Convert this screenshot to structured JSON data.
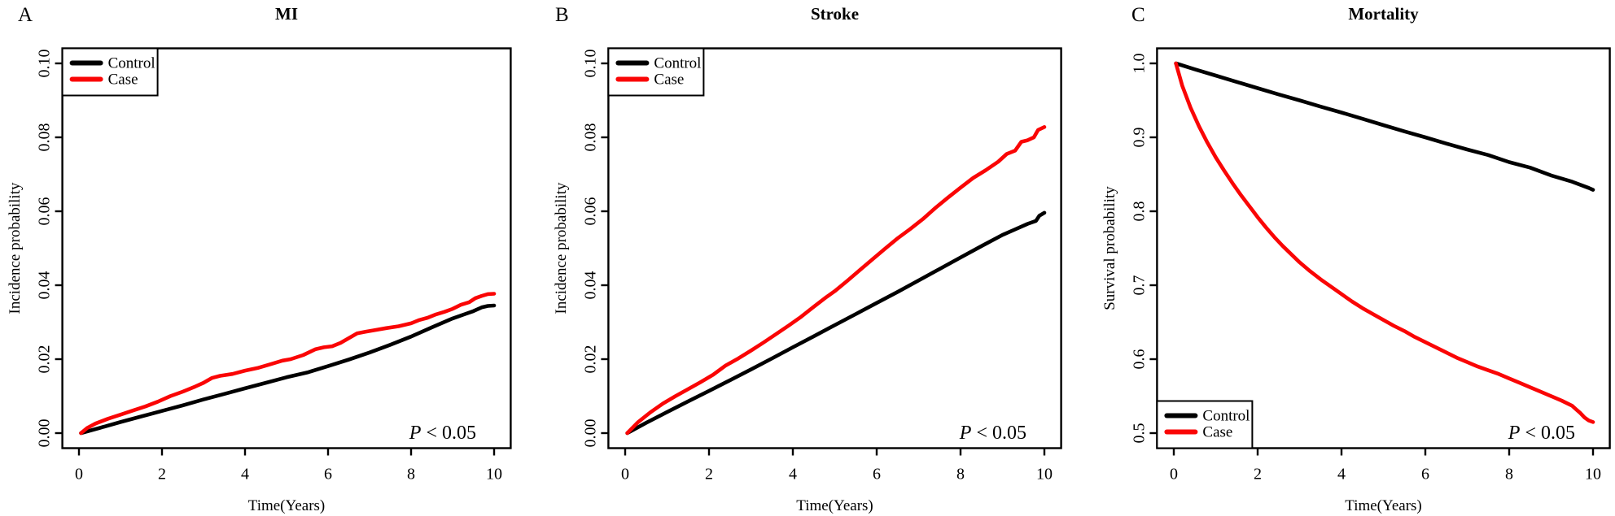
{
  "figure": {
    "background": "#ffffff",
    "curve_black": "#000000",
    "curve_red": "#fa0505",
    "p_annotation": "P < 0.05",
    "time_axis_label": "Time(Years)"
  },
  "chart_data": [
    {
      "type": "line",
      "panel_letter": "A",
      "title": "MI",
      "xlabel": "Time(Years)",
      "ylabel": "Incidence probability",
      "x_ticks": [
        "0",
        "2",
        "4",
        "6",
        "8",
        "10"
      ],
      "y_ticks": [
        "0.00",
        "0.02",
        "0.04",
        "0.06",
        "0.08",
        "0.10"
      ],
      "xlim": [
        0,
        10
      ],
      "ylim": [
        0,
        0.1
      ],
      "grid": false,
      "annotation": "P < 0.05",
      "legend": {
        "position": "top-left",
        "entries": [
          "Control",
          "Case"
        ]
      },
      "series": [
        {
          "name": "Control",
          "color": "#000000",
          "points": [
            [
              0.05,
              0
            ],
            [
              0.5,
              0.0014
            ],
            [
              1,
              0.003
            ],
            [
              1.5,
              0.0045
            ],
            [
              2,
              0.006
            ],
            [
              2.5,
              0.0075
            ],
            [
              3,
              0.0091
            ],
            [
              3.5,
              0.0106
            ],
            [
              4,
              0.0121
            ],
            [
              4.5,
              0.0136
            ],
            [
              5,
              0.0151
            ],
            [
              5.5,
              0.0164
            ],
            [
              6,
              0.0181
            ],
            [
              6.5,
              0.0199
            ],
            [
              7,
              0.0218
            ],
            [
              7.5,
              0.0239
            ],
            [
              8,
              0.0261
            ],
            [
              8.5,
              0.0286
            ],
            [
              9,
              0.031
            ],
            [
              9.3,
              0.0322
            ],
            [
              9.5,
              0.033
            ],
            [
              9.7,
              0.034
            ],
            [
              9.85,
              0.0344
            ],
            [
              10,
              0.0345
            ]
          ]
        },
        {
          "name": "Case",
          "color": "#fa0505",
          "points": [
            [
              0.05,
              0
            ],
            [
              0.2,
              0.0014
            ],
            [
              0.4,
              0.0026
            ],
            [
              0.7,
              0.0039
            ],
            [
              1,
              0.005
            ],
            [
              1.3,
              0.0061
            ],
            [
              1.6,
              0.0072
            ],
            [
              1.9,
              0.0085
            ],
            [
              2.2,
              0.01
            ],
            [
              2.5,
              0.0112
            ],
            [
              2.8,
              0.0126
            ],
            [
              3,
              0.0136
            ],
            [
              3.2,
              0.0149
            ],
            [
              3.4,
              0.0155
            ],
            [
              3.7,
              0.016
            ],
            [
              4,
              0.0169
            ],
            [
              4.3,
              0.0176
            ],
            [
              4.6,
              0.0186
            ],
            [
              4.9,
              0.0196
            ],
            [
              5.1,
              0.02
            ],
            [
              5.4,
              0.0211
            ],
            [
              5.7,
              0.0227
            ],
            [
              5.9,
              0.0232
            ],
            [
              6.1,
              0.0235
            ],
            [
              6.3,
              0.0244
            ],
            [
              6.5,
              0.0257
            ],
            [
              6.7,
              0.027
            ],
            [
              6.9,
              0.0274
            ],
            [
              7.1,
              0.0278
            ],
            [
              7.4,
              0.0284
            ],
            [
              7.7,
              0.0289
            ],
            [
              8,
              0.0297
            ],
            [
              8.2,
              0.0306
            ],
            [
              8.4,
              0.0312
            ],
            [
              8.6,
              0.0321
            ],
            [
              8.8,
              0.0328
            ],
            [
              9,
              0.0336
            ],
            [
              9.2,
              0.0347
            ],
            [
              9.4,
              0.0354
            ],
            [
              9.55,
              0.0365
            ],
            [
              9.7,
              0.0371
            ],
            [
              9.85,
              0.0376
            ],
            [
              10,
              0.0377
            ]
          ]
        }
      ]
    },
    {
      "type": "line",
      "panel_letter": "B",
      "title": "Stroke",
      "xlabel": "Time(Years)",
      "ylabel": "Incidence probability",
      "x_ticks": [
        "0",
        "2",
        "4",
        "6",
        "8",
        "10"
      ],
      "y_ticks": [
        "0.00",
        "0.02",
        "0.04",
        "0.06",
        "0.08",
        "0.10"
      ],
      "xlim": [
        0,
        10
      ],
      "ylim": [
        0,
        0.1
      ],
      "grid": false,
      "annotation": "P < 0.05",
      "legend": {
        "position": "top-left",
        "entries": [
          "Control",
          "Case"
        ]
      },
      "series": [
        {
          "name": "Control",
          "color": "#000000",
          "points": [
            [
              0.05,
              0
            ],
            [
              0.5,
              0.0028
            ],
            [
              1,
              0.0057
            ],
            [
              1.5,
              0.0086
            ],
            [
              2,
              0.0114
            ],
            [
              2.5,
              0.0143
            ],
            [
              3,
              0.0172
            ],
            [
              3.5,
              0.0202
            ],
            [
              4,
              0.0232
            ],
            [
              4.5,
              0.0262
            ],
            [
              5,
              0.0292
            ],
            [
              5.5,
              0.0322
            ],
            [
              6,
              0.0352
            ],
            [
              6.5,
              0.0382
            ],
            [
              7,
              0.0413
            ],
            [
              7.5,
              0.0444
            ],
            [
              8,
              0.0475
            ],
            [
              8.5,
              0.0506
            ],
            [
              9,
              0.0536
            ],
            [
              9.3,
              0.0551
            ],
            [
              9.6,
              0.0566
            ],
            [
              9.8,
              0.0574
            ],
            [
              9.88,
              0.0588
            ],
            [
              10,
              0.0596
            ]
          ]
        },
        {
          "name": "Case",
          "color": "#fa0505",
          "points": [
            [
              0.05,
              0
            ],
            [
              0.3,
              0.0029
            ],
            [
              0.6,
              0.0056
            ],
            [
              0.9,
              0.008
            ],
            [
              1.2,
              0.01
            ],
            [
              1.5,
              0.0119
            ],
            [
              1.8,
              0.0138
            ],
            [
              2.1,
              0.0158
            ],
            [
              2.4,
              0.0183
            ],
            [
              2.7,
              0.0202
            ],
            [
              3,
              0.0223
            ],
            [
              3.3,
              0.0245
            ],
            [
              3.6,
              0.0268
            ],
            [
              3.9,
              0.0291
            ],
            [
              4.2,
              0.0315
            ],
            [
              4.5,
              0.0342
            ],
            [
              4.8,
              0.0368
            ],
            [
              5,
              0.0384
            ],
            [
              5.3,
              0.0412
            ],
            [
              5.6,
              0.0441
            ],
            [
              5.9,
              0.047
            ],
            [
              6.2,
              0.0499
            ],
            [
              6.5,
              0.0527
            ],
            [
              6.8,
              0.0552
            ],
            [
              7.1,
              0.0579
            ],
            [
              7.4,
              0.0609
            ],
            [
              7.7,
              0.0637
            ],
            [
              8,
              0.0664
            ],
            [
              8.3,
              0.069
            ],
            [
              8.6,
              0.0711
            ],
            [
              8.9,
              0.0734
            ],
            [
              9.1,
              0.0755
            ],
            [
              9.3,
              0.0764
            ],
            [
              9.45,
              0.0788
            ],
            [
              9.6,
              0.0792
            ],
            [
              9.75,
              0.08
            ],
            [
              9.85,
              0.082
            ],
            [
              10,
              0.0828
            ]
          ]
        }
      ]
    },
    {
      "type": "line",
      "panel_letter": "C",
      "title": "Mortality",
      "xlabel": "Time(Years)",
      "ylabel": "Survival probability",
      "x_ticks": [
        "0",
        "2",
        "4",
        "6",
        "8",
        "10"
      ],
      "y_ticks": [
        "0.5",
        "0.6",
        "0.7",
        "0.8",
        "0.9",
        "1.0"
      ],
      "xlim": [
        0,
        10
      ],
      "ylim": [
        0.5,
        1.0
      ],
      "grid": false,
      "annotation": "P < 0.05",
      "legend": {
        "position": "bottom-left",
        "entries": [
          "Control",
          "Case"
        ]
      },
      "series": [
        {
          "name": "Control",
          "color": "#000000",
          "points": [
            [
              0.05,
              1.0
            ],
            [
              0.5,
              0.992
            ],
            [
              1,
              0.9835
            ],
            [
              1.5,
              0.975
            ],
            [
              2,
              0.9665
            ],
            [
              2.5,
              0.958
            ],
            [
              3,
              0.95
            ],
            [
              3.5,
              0.9415
            ],
            [
              4,
              0.9335
            ],
            [
              4.5,
              0.925
            ],
            [
              5,
              0.9165
            ],
            [
              5.5,
              0.908
            ],
            [
              6,
              0.9
            ],
            [
              6.5,
              0.8915
            ],
            [
              7,
              0.8835
            ],
            [
              7.5,
              0.876
            ],
            [
              8,
              0.8665
            ],
            [
              8.5,
              0.859
            ],
            [
              9,
              0.8485
            ],
            [
              9.5,
              0.84
            ],
            [
              9.9,
              0.8315
            ],
            [
              10,
              0.829
            ]
          ]
        },
        {
          "name": "Case",
          "color": "#fa0505",
          "points": [
            [
              0.05,
              1.0
            ],
            [
              0.2,
              0.97
            ],
            [
              0.4,
              0.94
            ],
            [
              0.6,
              0.915
            ],
            [
              0.8,
              0.893
            ],
            [
              1,
              0.873
            ],
            [
              1.2,
              0.855
            ],
            [
              1.4,
              0.838
            ],
            [
              1.6,
              0.822
            ],
            [
              1.8,
              0.807
            ],
            [
              2,
              0.792
            ],
            [
              2.2,
              0.778
            ],
            [
              2.4,
              0.765
            ],
            [
              2.6,
              0.753
            ],
            [
              2.8,
              0.742
            ],
            [
              3,
              0.731
            ],
            [
              3.25,
              0.719
            ],
            [
              3.5,
              0.708
            ],
            [
              3.75,
              0.698
            ],
            [
              4,
              0.688
            ],
            [
              4.25,
              0.678
            ],
            [
              4.5,
              0.669
            ],
            [
              4.75,
              0.661
            ],
            [
              5,
              0.653
            ],
            [
              5.25,
              0.645
            ],
            [
              5.5,
              0.638
            ],
            [
              5.75,
              0.63
            ],
            [
              6,
              0.623
            ],
            [
              6.25,
              0.616
            ],
            [
              6.5,
              0.609
            ],
            [
              6.75,
              0.602
            ],
            [
              7,
              0.596
            ],
            [
              7.25,
              0.59
            ],
            [
              7.5,
              0.585
            ],
            [
              7.75,
              0.58
            ],
            [
              8,
              0.574
            ],
            [
              8.25,
              0.568
            ],
            [
              8.5,
              0.562
            ],
            [
              8.75,
              0.556
            ],
            [
              9,
              0.55
            ],
            [
              9.25,
              0.544
            ],
            [
              9.5,
              0.537
            ],
            [
              9.6,
              0.532
            ],
            [
              9.7,
              0.527
            ],
            [
              9.8,
              0.521
            ],
            [
              9.9,
              0.517
            ],
            [
              10,
              0.515
            ]
          ]
        }
      ]
    }
  ]
}
